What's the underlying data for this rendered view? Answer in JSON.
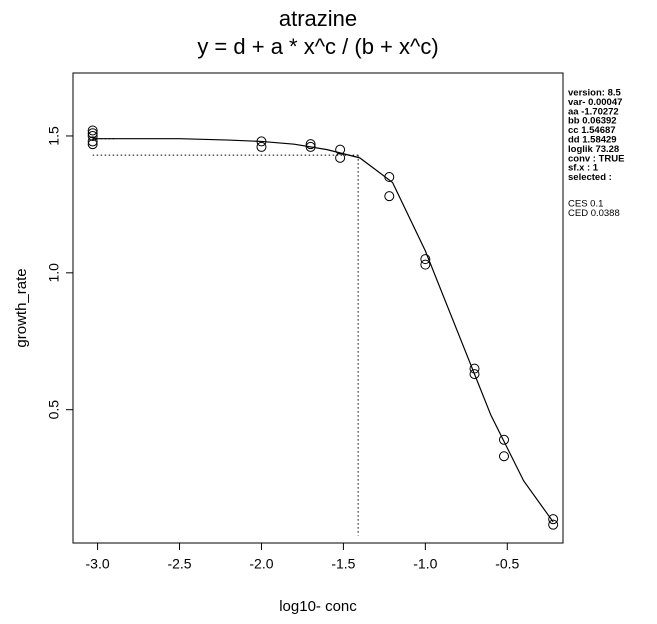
{
  "chart_data": {
    "type": "scatter",
    "title": "atrazine",
    "subtitle": "y = d + a * x^c / (b + x^c)",
    "x_label": "log10- conc",
    "y_label": "growth_rate",
    "xlim": [
      -3.15,
      -0.16
    ],
    "ylim": [
      0.013,
      1.73
    ],
    "xticks": [
      {
        "value": -3,
        "label": "-3.0"
      },
      -2.5,
      {
        "value": -2,
        "label": "-2.0"
      },
      -1.5,
      {
        "value": -1,
        "label": "-1.0"
      },
      -0.5
    ],
    "yticks": [
      0.5,
      {
        "value": 1,
        "label": "1.0"
      },
      1.5
    ],
    "points": {
      "color": "#000000",
      "x": [
        -3.03,
        -3.03,
        -3.03,
        -3.03,
        -3.03,
        -2.0,
        -2.0,
        -1.7,
        -1.7,
        -1.52,
        -1.52,
        -1.22,
        -1.22,
        -1.0,
        -1.0,
        -0.7,
        -0.7,
        -0.52,
        -0.52,
        -0.22,
        -0.22
      ],
      "y": [
        1.52,
        1.51,
        1.5,
        1.48,
        1.47,
        1.48,
        1.46,
        1.47,
        1.46,
        1.45,
        1.42,
        1.35,
        1.28,
        1.05,
        1.03,
        0.65,
        0.63,
        0.39,
        0.33,
        0.1,
        0.08
      ]
    },
    "curve": {
      "color": "#000000",
      "x": [
        -3.03,
        -2.8,
        -2.5,
        -2.2,
        -2.0,
        -1.8,
        -1.6,
        -1.4,
        -1.2,
        -1.0,
        -0.8,
        -0.6,
        -0.4,
        -0.22
      ],
      "y": [
        1.49,
        1.49,
        1.49,
        1.485,
        1.48,
        1.47,
        1.45,
        1.42,
        1.33,
        1.08,
        0.78,
        0.48,
        0.24,
        0.09
      ]
    },
    "ced_line": {
      "x": -1.41,
      "y": 1.43,
      "y_bottom": 0.04
    },
    "control_level": {
      "y": 1.49,
      "x_end": -2.9
    },
    "info": [
      "version: 8.5",
      "var-    0.00047",
      "aa    -1.70272",
      "bb    0.06392",
      "cc    1.54687",
      "dd    1.58429",
      "loglik    73.28",
      "conv :  TRUE",
      "sf.x :  1",
      "selected :"
    ],
    "info2": [
      "CES    0.1",
      "CED     0.0388"
    ]
  }
}
